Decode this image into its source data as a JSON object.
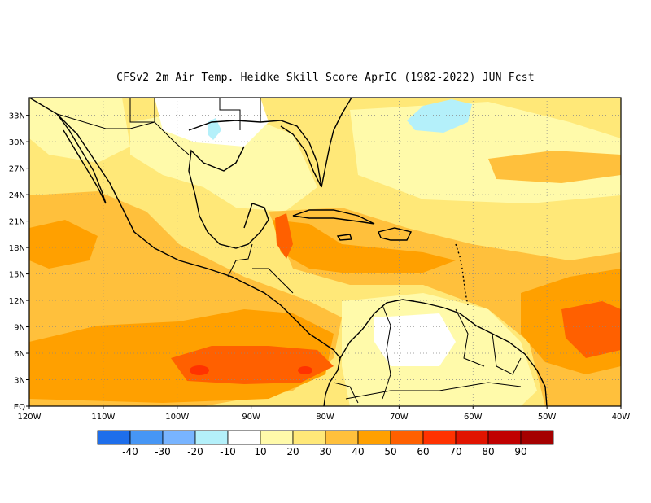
{
  "title": "CFSv2  2m Air Temp. Heidke Skill Score AprIC (1982-2022) JUN Fcst",
  "map": {
    "lon_range": [
      -120,
      -40
    ],
    "lat_range": [
      0,
      35
    ],
    "lat_ticks": [
      {
        "lat": 33,
        "label": "33N"
      },
      {
        "lat": 30,
        "label": "30N"
      },
      {
        "lat": 27,
        "label": "27N"
      },
      {
        "lat": 24,
        "label": "24N"
      },
      {
        "lat": 21,
        "label": "21N"
      },
      {
        "lat": 18,
        "label": "18N"
      },
      {
        "lat": 15,
        "label": "15N"
      },
      {
        "lat": 12,
        "label": "12N"
      },
      {
        "lat": 9,
        "label": "9N"
      },
      {
        "lat": 6,
        "label": "6N"
      },
      {
        "lat": 3,
        "label": "3N"
      },
      {
        "lat": 0,
        "label": "EQ"
      }
    ],
    "lon_ticks": [
      {
        "lon": -120,
        "label": "120W"
      },
      {
        "lon": -110,
        "label": "110W"
      },
      {
        "lon": -100,
        "label": "100W"
      },
      {
        "lon": -90,
        "label": "90W"
      },
      {
        "lon": -80,
        "label": "80W"
      },
      {
        "lon": -70,
        "label": "70W"
      },
      {
        "lon": -60,
        "label": "60W"
      },
      {
        "lon": -50,
        "label": "50W"
      },
      {
        "lon": -40,
        "label": "40W"
      }
    ],
    "grid": "dotted"
  },
  "colorbar": {
    "colors": [
      "#1e6eeb",
      "#4696f5",
      "#78b4ff",
      "#b4f0fa",
      "#ffffff",
      "#fffaaa",
      "#ffe878",
      "#ffc03c",
      "#ffa000",
      "#ff6000",
      "#ff3200",
      "#e11400",
      "#c00000",
      "#a50000"
    ],
    "labels": [
      "-40",
      "-30",
      "-20",
      "-10",
      "10",
      "20",
      "30",
      "40",
      "50",
      "60",
      "70",
      "80",
      "90"
    ]
  }
}
